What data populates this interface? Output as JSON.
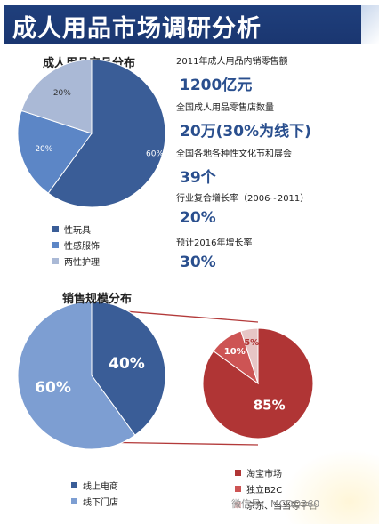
{
  "title": "成人用品市场调研分析",
  "product_section": {
    "title": "成人用品产品分布",
    "legend": [
      {
        "label": "性玩具",
        "color": "#3a5d97"
      },
      {
        "label": "性感服饰",
        "color": "#5c86c6"
      },
      {
        "label": "两性护理",
        "color": "#aab9d6"
      }
    ]
  },
  "stats": [
    {
      "label": "2011年成人用品内销零售额",
      "value": "1200亿元"
    },
    {
      "label": "全国成人用品零售店数量",
      "value": "20万(30%为线下)"
    },
    {
      "label": "全国各地各种性文化节和展会",
      "value": "39个"
    },
    {
      "label": "行业复合增长率（2006~2011）",
      "value": "20%"
    },
    {
      "label": "预计2016年增长率",
      "value": "30%"
    }
  ],
  "sales_section": {
    "title": "销售规模分布",
    "legend": [
      {
        "label": "线上电商",
        "color": "#3a5d97"
      },
      {
        "label": "线下门店",
        "color": "#7d9ed2"
      }
    ],
    "sub_legend": [
      {
        "label": "淘宝市场",
        "color": "#b03535"
      },
      {
        "label": "独立B2C",
        "color": "#cd5454"
      },
      {
        "label": "京东、当当等平台",
        "color": "#e7c5c5"
      }
    ]
  },
  "watermark": "微信号：MCDQ360",
  "chart_data": [
    {
      "type": "pie",
      "title": "成人用品产品分布",
      "labels": [
        "性玩具",
        "性感服饰",
        "两性护理"
      ],
      "values": [
        60,
        20,
        20
      ],
      "value_labels": [
        "60%",
        "20%",
        "20%"
      ]
    },
    {
      "type": "pie",
      "title": "销售规模分布",
      "labels": [
        "线上电商",
        "线下门店"
      ],
      "values": [
        40,
        60
      ],
      "value_labels": [
        "40%",
        "60%"
      ]
    },
    {
      "type": "pie",
      "labels": [
        "淘宝市场",
        "独立B2C",
        "京东、当当等平台"
      ],
      "values": [
        85,
        10,
        5
      ],
      "value_labels": [
        "85%",
        "10%",
        "5%"
      ]
    }
  ]
}
